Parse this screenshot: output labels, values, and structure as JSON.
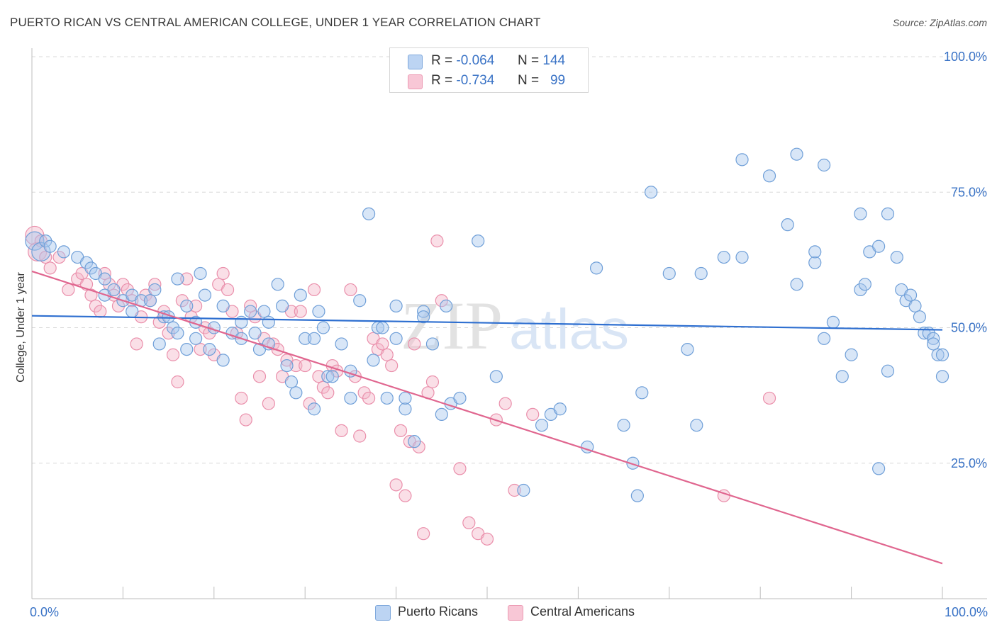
{
  "header": {
    "title": "PUERTO RICAN VS CENTRAL AMERICAN COLLEGE, UNDER 1 YEAR CORRELATION CHART",
    "source": "Source: ZipAtlas.com"
  },
  "watermark": {
    "zip": "ZIP",
    "atlas": "atlas"
  },
  "colors": {
    "blue_fill": "#a9c7ee",
    "blue_stroke": "#6f9fd8",
    "blue_line": "#2e6fd0",
    "pink_fill": "#f5b8ca",
    "pink_stroke": "#ea8fab",
    "pink_line": "#e0668f",
    "grid": "#d8d8d8",
    "axis_text": "#3a73c6"
  },
  "legend": {
    "rows": [
      {
        "r_label": "R =",
        "r_value": "-0.064",
        "n_label": "N =",
        "n_value": "144",
        "color": "blue"
      },
      {
        "r_label": "R =",
        "r_value": "-0.734",
        "n_label": "N =",
        "n_value": "99",
        "color": "pink"
      }
    ]
  },
  "bottom_legend": [
    {
      "label": "Puerto Ricans",
      "color": "blue"
    },
    {
      "label": "Central Americans",
      "color": "pink"
    }
  ],
  "chart_data": {
    "type": "scatter",
    "title": "PUERTO RICAN VS CENTRAL AMERICAN COLLEGE, UNDER 1 YEAR CORRELATION CHART",
    "xlabel": "",
    "ylabel": "College, Under 1 year",
    "xlim": [
      0,
      100
    ],
    "ylim": [
      0,
      100
    ],
    "x_tick_labels": [
      "0.0%",
      "100.0%"
    ],
    "y_tick_labels": [
      "25.0%",
      "50.0%",
      "75.0%",
      "100.0%"
    ],
    "y_gridlines": [
      25,
      50,
      75,
      100
    ],
    "grid": true,
    "legend_placement": "top-center",
    "series": [
      {
        "name": "Puerto Ricans",
        "color": "#a9c7ee",
        "trend": {
          "x": [
            0,
            100
          ],
          "y": [
            52.2,
            49.6
          ]
        },
        "points": [
          [
            0.3,
            66
          ],
          [
            1,
            64
          ],
          [
            1.5,
            66
          ],
          [
            2,
            65
          ],
          [
            3.5,
            64
          ],
          [
            5,
            63
          ],
          [
            6,
            62
          ],
          [
            6.5,
            61
          ],
          [
            7,
            60
          ],
          [
            8,
            59
          ],
          [
            8,
            56
          ],
          [
            9,
            57
          ],
          [
            10,
            55
          ],
          [
            11,
            56
          ],
          [
            11,
            53
          ],
          [
            12,
            55
          ],
          [
            13,
            55
          ],
          [
            13.5,
            57
          ],
          [
            14,
            47
          ],
          [
            14.5,
            52
          ],
          [
            15,
            52
          ],
          [
            15.5,
            50
          ],
          [
            16,
            49
          ],
          [
            16,
            59
          ],
          [
            17,
            54
          ],
          [
            17,
            46
          ],
          [
            18,
            51
          ],
          [
            18,
            48
          ],
          [
            18.5,
            60
          ],
          [
            19,
            56
          ],
          [
            19.5,
            46
          ],
          [
            20,
            50
          ],
          [
            21,
            54
          ],
          [
            21,
            44
          ],
          [
            22,
            49
          ],
          [
            23,
            48
          ],
          [
            23,
            51
          ],
          [
            24,
            53
          ],
          [
            24.5,
            49
          ],
          [
            25,
            46
          ],
          [
            25.5,
            53
          ],
          [
            26,
            51
          ],
          [
            26,
            47
          ],
          [
            27,
            58
          ],
          [
            27.5,
            54
          ],
          [
            28,
            43
          ],
          [
            28.5,
            40
          ],
          [
            29,
            38
          ],
          [
            29.5,
            56
          ],
          [
            30,
            48
          ],
          [
            31,
            35
          ],
          [
            31,
            48
          ],
          [
            31.5,
            53
          ],
          [
            32,
            50
          ],
          [
            32.5,
            41
          ],
          [
            33,
            41
          ],
          [
            34,
            47
          ],
          [
            35,
            37
          ],
          [
            35,
            42
          ],
          [
            36,
            55
          ],
          [
            37,
            71
          ],
          [
            37.5,
            44
          ],
          [
            38,
            50
          ],
          [
            38.5,
            50
          ],
          [
            39,
            37
          ],
          [
            40,
            48
          ],
          [
            40,
            54
          ],
          [
            41,
            35
          ],
          [
            41,
            37
          ],
          [
            42,
            29
          ],
          [
            43,
            53
          ],
          [
            43,
            52
          ],
          [
            44,
            47
          ],
          [
            45,
            34
          ],
          [
            45.5,
            54
          ],
          [
            46,
            36
          ],
          [
            47,
            37
          ],
          [
            49,
            66
          ],
          [
            51,
            41
          ],
          [
            54,
            20
          ],
          [
            56,
            32
          ],
          [
            57,
            34
          ],
          [
            58,
            35
          ],
          [
            61,
            28
          ],
          [
            62,
            61
          ],
          [
            65,
            32
          ],
          [
            66,
            25
          ],
          [
            66.5,
            19
          ],
          [
            67,
            38
          ],
          [
            68,
            75
          ],
          [
            70,
            60
          ],
          [
            72,
            46
          ],
          [
            73,
            32
          ],
          [
            73.5,
            60
          ],
          [
            76,
            63
          ],
          [
            78,
            63
          ],
          [
            78,
            81
          ],
          [
            81,
            78
          ],
          [
            83,
            69
          ],
          [
            84,
            58
          ],
          [
            84,
            82
          ],
          [
            86,
            62
          ],
          [
            86,
            64
          ],
          [
            87,
            48
          ],
          [
            87,
            80
          ],
          [
            88,
            51
          ],
          [
            89,
            41
          ],
          [
            90,
            45
          ],
          [
            91,
            57
          ],
          [
            91,
            71
          ],
          [
            91.5,
            58
          ],
          [
            92,
            64
          ],
          [
            93,
            24
          ],
          [
            93,
            65
          ],
          [
            94,
            42
          ],
          [
            94,
            71
          ],
          [
            95,
            63
          ],
          [
            95.5,
            57
          ],
          [
            96,
            55
          ],
          [
            96.5,
            56
          ],
          [
            97,
            54
          ],
          [
            97.5,
            52
          ],
          [
            98,
            49
          ],
          [
            98.5,
            49
          ],
          [
            99,
            48
          ],
          [
            99,
            47
          ],
          [
            99.5,
            45
          ],
          [
            100,
            45
          ],
          [
            100,
            41
          ]
        ]
      },
      {
        "name": "Central Americans",
        "color": "#f5b8ca",
        "trend": {
          "x": [
            0,
            100
          ],
          "y": [
            60.4,
            6.5
          ]
        },
        "points": [
          [
            0.3,
            67
          ],
          [
            0.6,
            64
          ],
          [
            1,
            66
          ],
          [
            1.5,
            63
          ],
          [
            2,
            61
          ],
          [
            3,
            63
          ],
          [
            4,
            57
          ],
          [
            5,
            59
          ],
          [
            5.5,
            60
          ],
          [
            6,
            58
          ],
          [
            6.5,
            56
          ],
          [
            7,
            54
          ],
          [
            7.5,
            53
          ],
          [
            8,
            60
          ],
          [
            8.5,
            58
          ],
          [
            9,
            56
          ],
          [
            9.5,
            54
          ],
          [
            10,
            58
          ],
          [
            10.5,
            57
          ],
          [
            11,
            55
          ],
          [
            11.5,
            47
          ],
          [
            12,
            52
          ],
          [
            12.5,
            56
          ],
          [
            13,
            55
          ],
          [
            13.5,
            58
          ],
          [
            14,
            51
          ],
          [
            14.5,
            53
          ],
          [
            15,
            49
          ],
          [
            15.5,
            45
          ],
          [
            16,
            40
          ],
          [
            16.5,
            55
          ],
          [
            17,
            59
          ],
          [
            17.5,
            52
          ],
          [
            18,
            54
          ],
          [
            18.5,
            46
          ],
          [
            19,
            50
          ],
          [
            19.5,
            49
          ],
          [
            20,
            45
          ],
          [
            20.5,
            58
          ],
          [
            21,
            60
          ],
          [
            21.5,
            57
          ],
          [
            22,
            53
          ],
          [
            22.5,
            49
          ],
          [
            23,
            37
          ],
          [
            23.5,
            33
          ],
          [
            24,
            54
          ],
          [
            24.5,
            52
          ],
          [
            25,
            41
          ],
          [
            25.5,
            48
          ],
          [
            26,
            36
          ],
          [
            26.5,
            47
          ],
          [
            27,
            46
          ],
          [
            27.5,
            41
          ],
          [
            28,
            44
          ],
          [
            28.5,
            53
          ],
          [
            29,
            43
          ],
          [
            29.5,
            53
          ],
          [
            30,
            43
          ],
          [
            30.5,
            36
          ],
          [
            31,
            57
          ],
          [
            31.5,
            41
          ],
          [
            32,
            39
          ],
          [
            32.5,
            38
          ],
          [
            33,
            43
          ],
          [
            33.5,
            42
          ],
          [
            34,
            31
          ],
          [
            35,
            57
          ],
          [
            35.5,
            41
          ],
          [
            36,
            30
          ],
          [
            36.5,
            38
          ],
          [
            37,
            37
          ],
          [
            37.5,
            48
          ],
          [
            38,
            46
          ],
          [
            38.5,
            47
          ],
          [
            39,
            45
          ],
          [
            39.5,
            43
          ],
          [
            40,
            21
          ],
          [
            40.5,
            31
          ],
          [
            41,
            19
          ],
          [
            41.5,
            29
          ],
          [
            42,
            47
          ],
          [
            42.5,
            28
          ],
          [
            43,
            12
          ],
          [
            43.5,
            38
          ],
          [
            44,
            40
          ],
          [
            44.5,
            66
          ],
          [
            45,
            55
          ],
          [
            47,
            24
          ],
          [
            48,
            14
          ],
          [
            49,
            12
          ],
          [
            50,
            11
          ],
          [
            51,
            33
          ],
          [
            52,
            36
          ],
          [
            53,
            20
          ],
          [
            55,
            34
          ],
          [
            76,
            19
          ],
          [
            81,
            37
          ]
        ]
      }
    ]
  }
}
